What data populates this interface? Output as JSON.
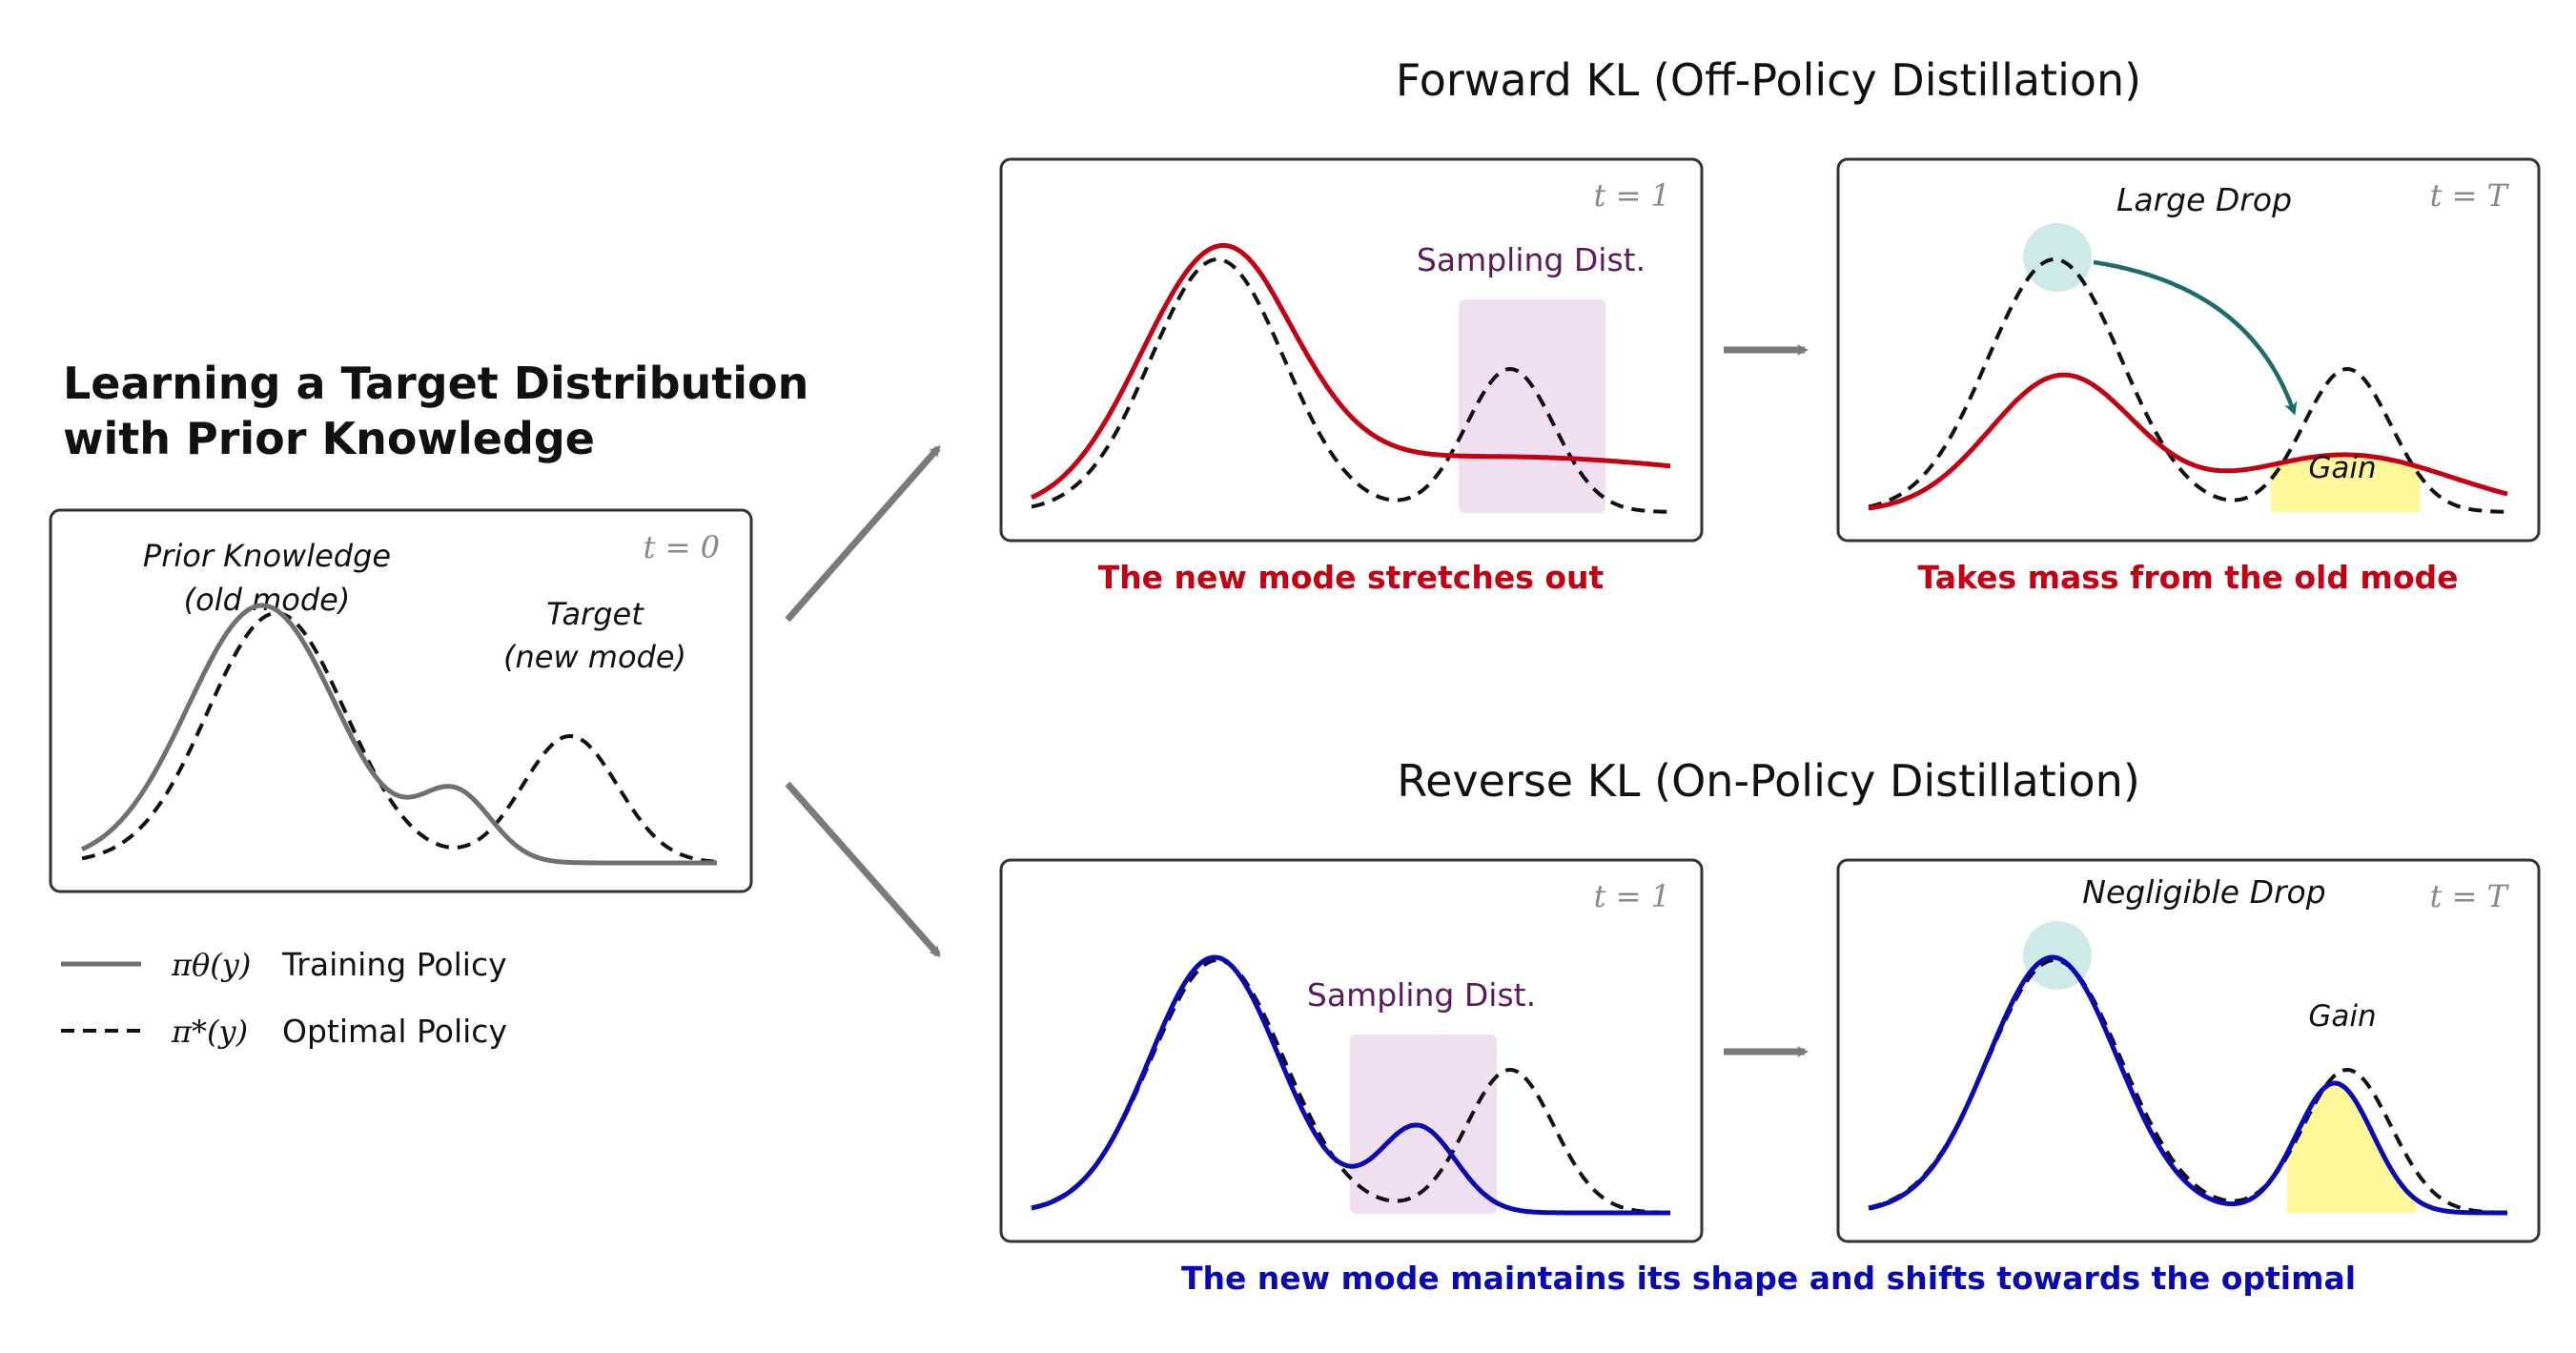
{
  "colors": {
    "training": "#707070",
    "optimal": "#111111",
    "forward": "#c40012",
    "reverse": "#0a0ab4",
    "sampling_fill": "#efdff0",
    "sampling_text": "#5a1a5e",
    "gain_fill": "#fff79a",
    "drop_circle": "#cde9e8",
    "drop_arrow": "#1f6b6b",
    "panel_border": "#333333",
    "arrow_gray": "#7a7a7a"
  },
  "left": {
    "title_line1": "Learning a Target Distribution",
    "title_line2": "with Prior Knowledge",
    "time_label": "t = 0",
    "prior_line1": "Prior Knowledge",
    "prior_line2": "(old mode)",
    "target_line1": "Target",
    "target_line2": "(new mode)"
  },
  "legend": {
    "training_symbol": "πθ(y)",
    "training_label": "Training Policy",
    "optimal_symbol": "π*(y)",
    "optimal_label": "Optimal Policy"
  },
  "forward": {
    "title": "Forward KL (Off-Policy Distillation)",
    "t1_label": "t = 1",
    "tT_label": "t = T",
    "sampling_label": "Sampling Dist.",
    "drop_label": "Large Drop",
    "gain_label": "Gain",
    "caption_t1": "The new mode stretches out",
    "caption_tT": "Takes mass from the old mode"
  },
  "reverse": {
    "title": "Reverse KL (On-Policy Distillation)",
    "t1_label": "t = 1",
    "tT_label": "t = T",
    "sampling_label": "Sampling Dist.",
    "drop_label": "Negligible Drop",
    "gain_label": "Gain",
    "caption": "The new mode maintains its shape and shifts towards the optimal"
  }
}
